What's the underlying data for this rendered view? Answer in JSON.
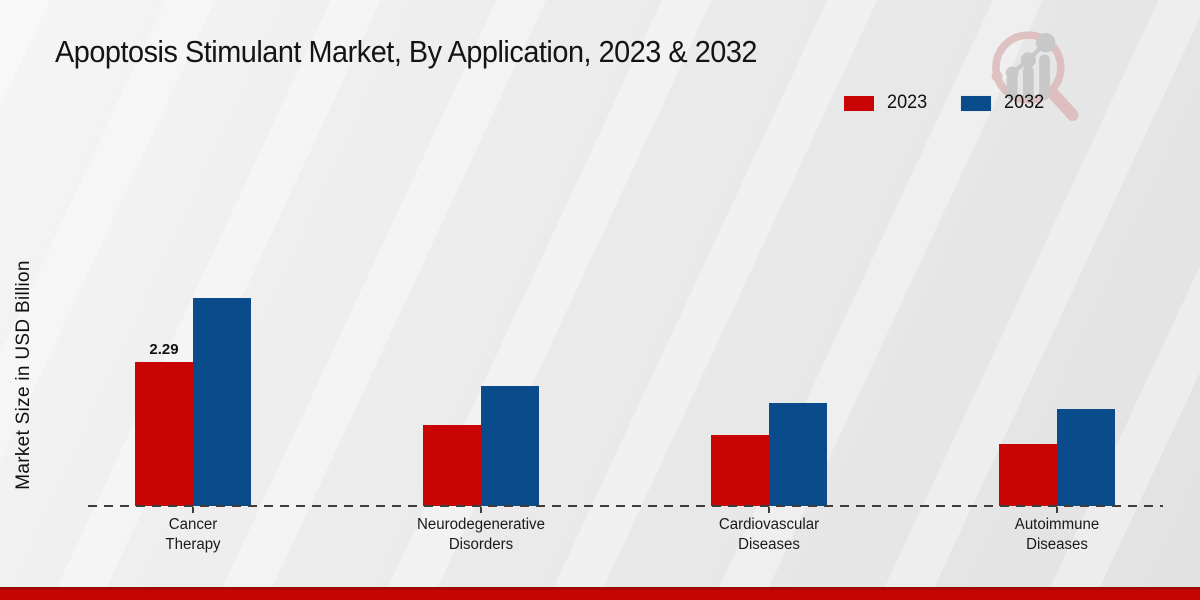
{
  "title": "Apoptosis Stimulant Market, By Application, 2023 & 2032",
  "y_axis_label": "Market Size in USD Billion",
  "legend": {
    "items": [
      {
        "label": "2023",
        "color": "#c90404"
      },
      {
        "label": "2032",
        "color": "#0a4b8c"
      }
    ]
  },
  "chart_data": {
    "type": "bar",
    "title": "Apoptosis Stimulant Market, By Application, 2023 & 2032",
    "ylabel": "Market Size in USD Billion",
    "xlabel": "",
    "categories": [
      "Cancer Therapy",
      "Neurodegenerative Disorders",
      "Cardiovascular Diseases",
      "Autoimmune Diseases"
    ],
    "category_lines": [
      [
        "Cancer",
        "Therapy"
      ],
      [
        "Neurodegenerative",
        "Disorders"
      ],
      [
        "Cardiovascular",
        "Diseases"
      ],
      [
        "Autoimmune",
        "Diseases"
      ]
    ],
    "series": [
      {
        "name": "2023",
        "color": "#c90404",
        "values": [
          2.29,
          1.29,
          1.13,
          0.99
        ]
      },
      {
        "name": "2032",
        "color": "#0a4b8c",
        "values": [
          3.31,
          1.91,
          1.64,
          1.54
        ]
      }
    ],
    "data_labels": [
      {
        "series": "2023",
        "category": "Cancer Therapy",
        "text": "2.29"
      }
    ],
    "ylim": [
      0,
      3.6
    ],
    "grid": false,
    "baseline_style": "dashed",
    "legend_position": "top-right"
  },
  "colors": {
    "background": "#ececec",
    "series_2023": "#c90404",
    "series_2032": "#0a4b8c",
    "baseline": "#3d3d3d",
    "bottom_accent": "#c50404",
    "watermark_pink": "#dcb9b9",
    "watermark_gray": "#c3c3c3"
  },
  "watermark_icon": "magnifier-bar-chart-logo"
}
